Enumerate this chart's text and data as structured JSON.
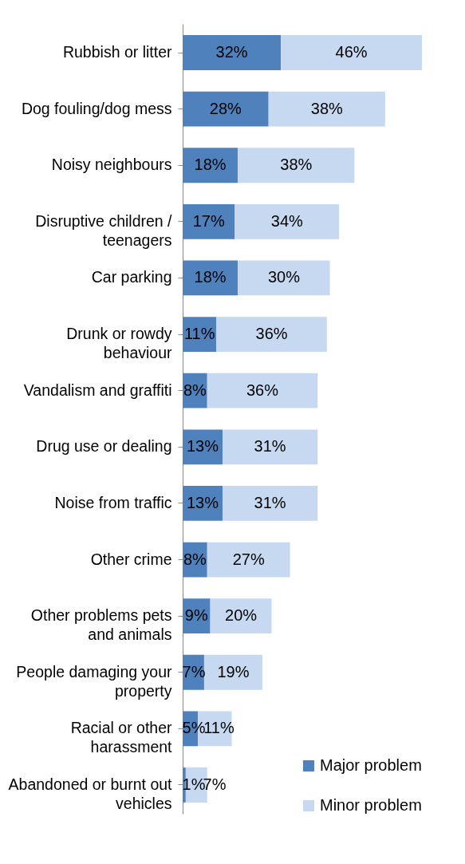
{
  "chart_data": {
    "type": "bar",
    "orientation": "horizontal",
    "stacked": true,
    "legend": "bottom right",
    "categories": [
      "Rubbish or litter",
      "Dog fouling/dog mess",
      "Noisy neighbours",
      "Disruptive children / teenagers",
      "Car parking",
      "Drunk or rowdy behaviour",
      "Vandalism and graffiti",
      "Drug use or dealing",
      "Noise from traffic",
      "Other crime",
      "Other problems pets and animals",
      "People damaging your property",
      "Racial or other harassment",
      "Abandoned or burnt out vehicles"
    ],
    "series": [
      {
        "name": "Major problem",
        "color": "#4f81bd",
        "values": [
          32,
          28,
          18,
          17,
          18,
          11,
          8,
          13,
          13,
          8,
          9,
          7,
          5,
          1
        ],
        "value_labels": [
          "32%",
          "28%",
          "18%",
          "17%",
          "18%",
          "11%",
          "8%",
          "13%",
          "13%",
          "8%",
          "9%",
          "7%",
          "5%",
          "1%"
        ]
      },
      {
        "name": "Minor problem",
        "color": "#c6d9f1",
        "values": [
          46,
          38,
          38,
          34,
          30,
          36,
          36,
          31,
          31,
          27,
          20,
          19,
          11,
          7
        ],
        "value_labels": [
          "46%",
          "38%",
          "38%",
          "34%",
          "30%",
          "36%",
          "36%",
          "31%",
          "31%",
          "27%",
          "20%",
          "19%",
          "11%",
          "7%"
        ]
      }
    ]
  }
}
